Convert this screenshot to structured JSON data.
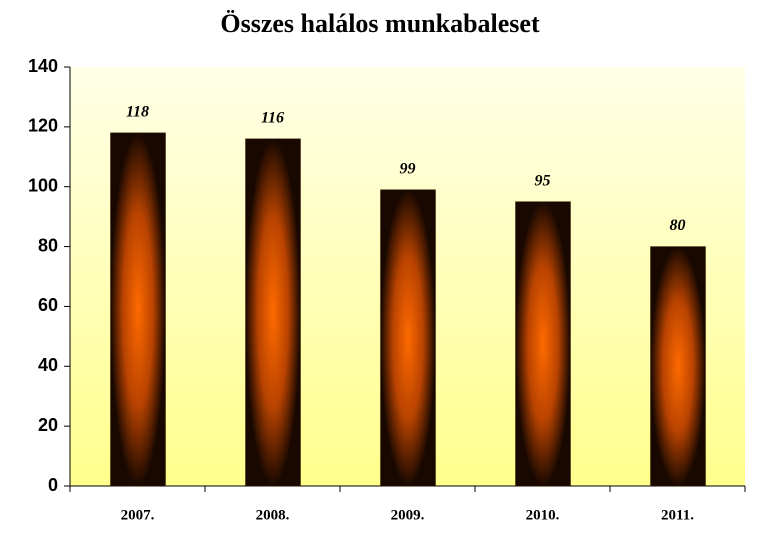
{
  "chart_data": {
    "type": "bar",
    "title": "Összes halálos munkabaleset",
    "categories": [
      "2007.",
      "2008.",
      "2009.",
      "2010.",
      "2011."
    ],
    "values": [
      118,
      116,
      99,
      95,
      80
    ],
    "color": "#ff6a00",
    "ylim": [
      0,
      140
    ],
    "yticks": [
      0,
      20,
      40,
      60,
      80,
      100,
      120,
      140
    ],
    "grid": false
  }
}
